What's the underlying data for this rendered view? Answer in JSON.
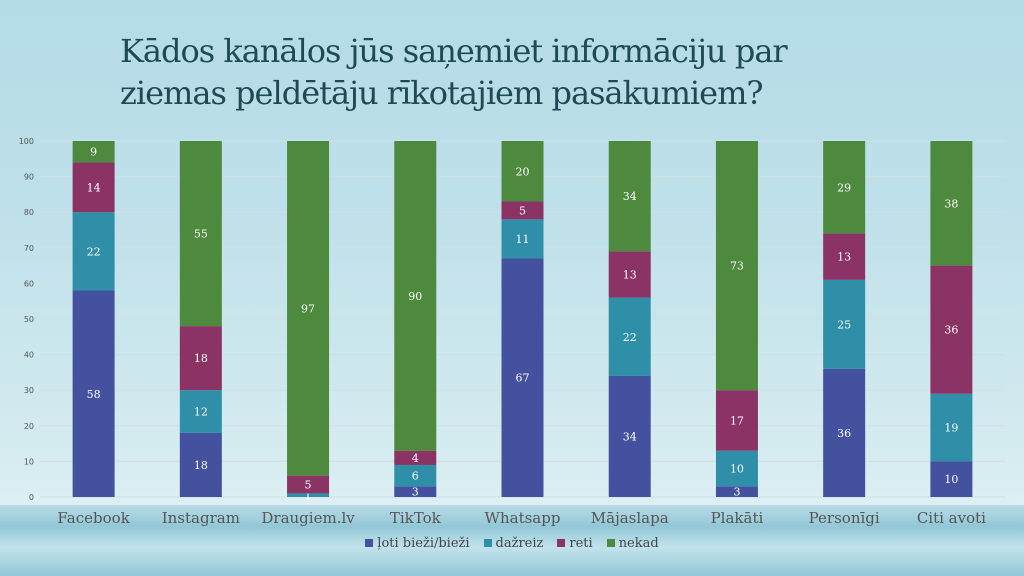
{
  "title": "Kādos kanālos jūs saņemiet informāciju par ziemas peldētāju rīkotajiem pasākumiem?",
  "chart_data": {
    "type": "bar",
    "stacked": true,
    "title": "Kādos kanālos jūs saņemiet informāciju par ziemas peldētāju rīkotajiem pasākumiem?",
    "categories": [
      "Facebook",
      "Instagram",
      "Draugiem.lv",
      "TikTok",
      "Whatsapp",
      "Mājaslapa",
      "Plakāti",
      "Personīgi",
      "Citi avoti"
    ],
    "series": [
      {
        "name": "ļoti bieži/bieži",
        "color": "#44519e",
        "values": [
          58,
          18,
          0,
          3,
          67,
          34,
          3,
          36,
          10
        ]
      },
      {
        "name": "dažreiz",
        "color": "#2f8ea8",
        "values": [
          22,
          12,
          1,
          6,
          11,
          22,
          10,
          25,
          19
        ]
      },
      {
        "name": "reti",
        "color": "#8b3365",
        "values": [
          14,
          18,
          5,
          4,
          5,
          13,
          17,
          13,
          36
        ]
      },
      {
        "name": "nekad",
        "color": "#4d8a3e",
        "values": [
          9,
          55,
          97,
          90,
          20,
          34,
          73,
          29,
          38
        ]
      }
    ],
    "ylim": [
      0,
      100
    ],
    "yticks": [
      0,
      10,
      20,
      30,
      40,
      50,
      60,
      70,
      80,
      90,
      100
    ],
    "grid": true,
    "legend": "bottom",
    "xlabel": "",
    "ylabel": ""
  }
}
